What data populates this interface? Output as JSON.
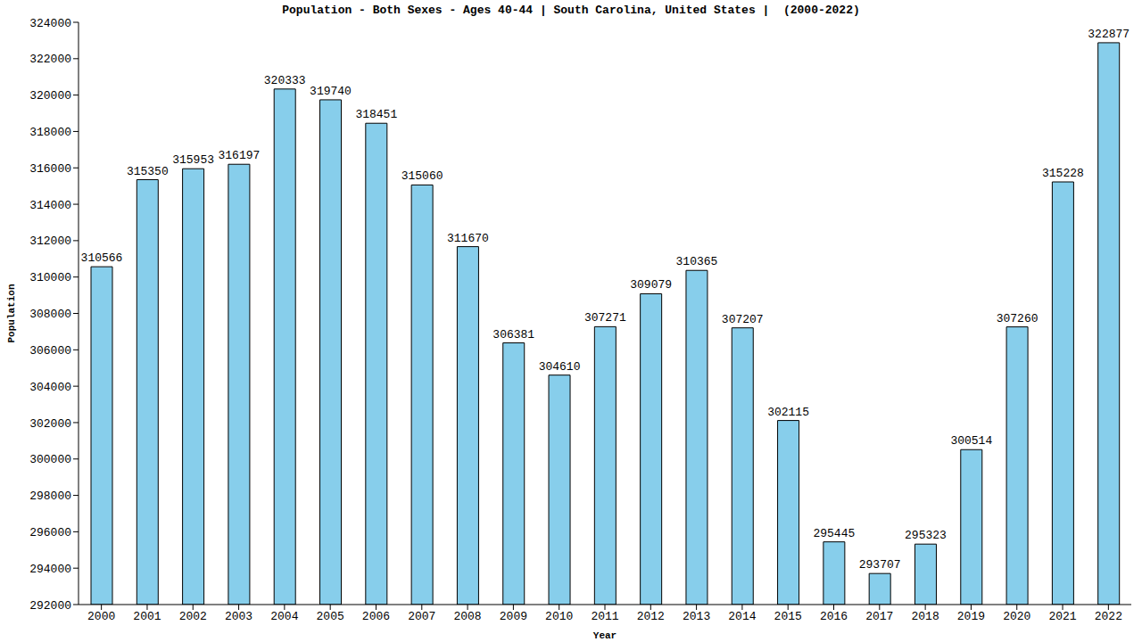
{
  "chart_data": {
    "type": "bar",
    "title": "Population - Both Sexes - Ages 40-44 | South Carolina, United States |  (2000-2022)",
    "x_label": "Year",
    "y_label": "Population",
    "categories": [
      "2000",
      "2001",
      "2002",
      "2003",
      "2004",
      "2005",
      "2006",
      "2007",
      "2008",
      "2009",
      "2010",
      "2011",
      "2012",
      "2013",
      "2014",
      "2015",
      "2016",
      "2017",
      "2018",
      "2019",
      "2020",
      "2021",
      "2022"
    ],
    "values": [
      310566,
      315350,
      315953,
      316197,
      320333,
      319740,
      318451,
      315060,
      311670,
      306381,
      304610,
      307271,
      309079,
      310365,
      307207,
      302115,
      295445,
      293707,
      295323,
      300514,
      307260,
      315228,
      322877
    ],
    "color": "#87ceeb",
    "ylim": [
      292000,
      324000
    ],
    "yticks": [
      292000,
      294000,
      296000,
      298000,
      300000,
      302000,
      304000,
      306000,
      308000,
      310000,
      312000,
      314000,
      316000,
      318000,
      320000,
      322000,
      324000
    ],
    "grid": false,
    "data_labels": true
  }
}
